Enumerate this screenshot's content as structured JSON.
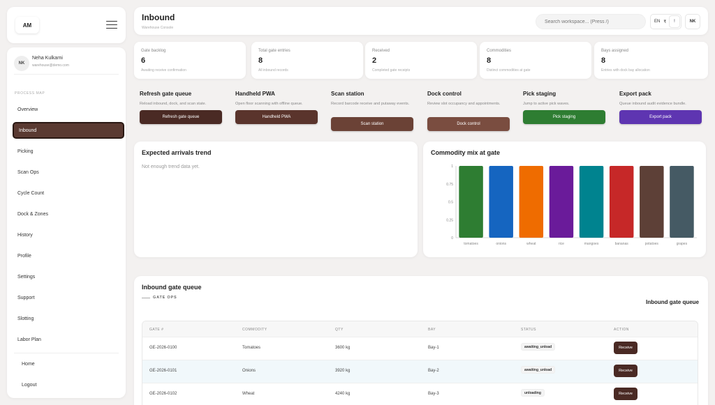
{
  "brand": {
    "initials": "AM"
  },
  "user": {
    "initials": "NK",
    "name": "Neha Kulkarni",
    "email": "warehouse@demo.com"
  },
  "sidebar": {
    "section_label": "PROCESS MAP",
    "items": [
      "Overview",
      "Inbound",
      "Picking",
      "Scan Ops",
      "Cycle Count",
      "Dock & Zones",
      "History",
      "Profile",
      "Settings",
      "Support",
      "Slotting",
      "Labor Plan"
    ],
    "active": "Inbound",
    "footer": [
      "Home",
      "Logout"
    ]
  },
  "header": {
    "title": "Inbound",
    "subtitle": "Warehouse Console",
    "search_placeholder": "Search workspace... (Press /)",
    "lang": "EN",
    "currency": "₹",
    "alert": "!",
    "avatar": "NK"
  },
  "stats": [
    {
      "label": "Gate backlog",
      "value": "6",
      "desc": "Awaiting receive confirmation"
    },
    {
      "label": "Total gate entries",
      "value": "8",
      "desc": "All inbound records"
    },
    {
      "label": "Received",
      "value": "2",
      "desc": "Completed gate receipts"
    },
    {
      "label": "Commodities",
      "value": "8",
      "desc": "Distinct commodities at gate"
    },
    {
      "label": "Bays assigned",
      "value": "8",
      "desc": "Entries with dock bay allocation"
    }
  ],
  "actions": [
    {
      "title": "Refresh gate queue",
      "desc": "Reload inbound, dock, and scan state.",
      "button": "Refresh gate queue",
      "color": "#4a2a24"
    },
    {
      "title": "Handheld PWA",
      "desc": "Open floor scanning with offline queue.",
      "button": "Handheld PWA",
      "color": "#5a342c"
    },
    {
      "title": "Scan station",
      "desc": "Record barcode receive and putaway events.",
      "button": "Scan station",
      "color": "#6b4236"
    },
    {
      "title": "Dock control",
      "desc": "Review slot occupancy and appointments.",
      "button": "Dock control",
      "color": "#7a4d40"
    },
    {
      "title": "Pick staging",
      "desc": "Jump to active pick waves.",
      "button": "Pick staging",
      "color": "#2e7d32"
    },
    {
      "title": "Export pack",
      "desc": "Queue inbound audit evidence bundle.",
      "button": "Export pack",
      "color": "#5e35b1"
    }
  ],
  "trend": {
    "title": "Expected arrivals trend",
    "empty": "Not enough trend data yet."
  },
  "chart_data": {
    "type": "bar",
    "title": "Commodity mix at gate",
    "categories": [
      "tomatoes",
      "onions",
      "wheat",
      "rice",
      "mangoes",
      "bananas",
      "potatoes",
      "grapes"
    ],
    "values": [
      1,
      1,
      1,
      1,
      1,
      1,
      1,
      1
    ],
    "ylim": [
      0,
      1
    ],
    "yticks": [
      0,
      0.25,
      0.5,
      0.75,
      1
    ],
    "ytick_labels": [
      "0",
      "0.25",
      "0.5",
      "0.75",
      "1"
    ],
    "colors": [
      "#2e7d32",
      "#1565c0",
      "#ef6c00",
      "#6a1b9a",
      "#00838f",
      "#c62828",
      "#5d4037",
      "#455a64"
    ],
    "grid": false
  },
  "queue": {
    "title": "Inbound gate queue",
    "subtitle": "GATE OPS",
    "right_title": "Inbound gate queue",
    "columns": [
      "GATE #",
      "COMMODITY",
      "QTY",
      "BAY",
      "STATUS",
      "ACTION"
    ],
    "rows": [
      {
        "gate": "GE-2026-0100",
        "commodity": "Tomatoes",
        "qty": "3600 kg",
        "bay": "Bay-1",
        "status": "awaiting_unload",
        "action": "Receive"
      },
      {
        "gate": "GE-2026-0101",
        "commodity": "Onions",
        "qty": "3920 kg",
        "bay": "Bay-2",
        "status": "awaiting_unload",
        "action": "Receive"
      },
      {
        "gate": "GE-2026-0102",
        "commodity": "Wheat",
        "qty": "4240 kg",
        "bay": "Bay-3",
        "status": "unloading",
        "action": "Receive"
      }
    ]
  }
}
